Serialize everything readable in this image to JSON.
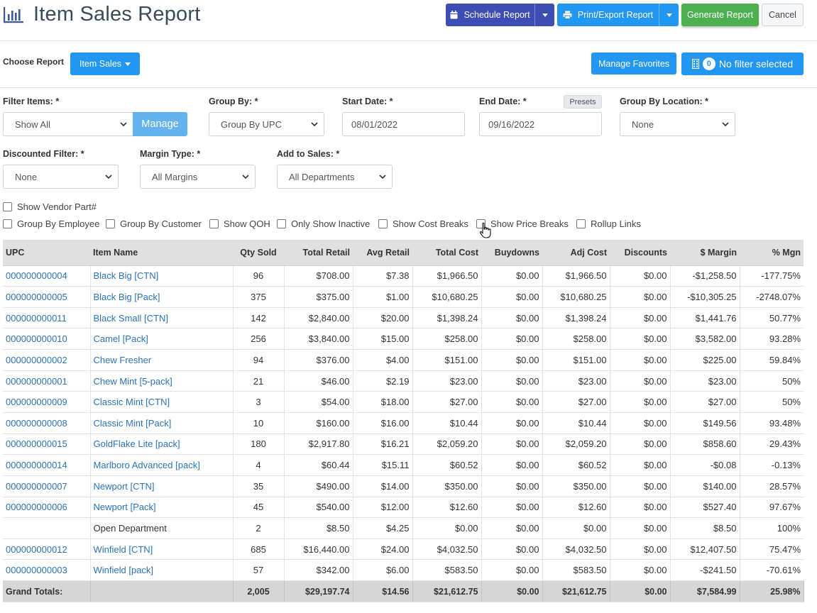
{
  "header": {
    "title": "Item Sales Report",
    "title_icon": "bar-chart-icon",
    "schedule_label": "Schedule Report",
    "print_label": "Print/Export Report",
    "generate_label": "Generate Report",
    "cancel_label": "Cancel"
  },
  "report": {
    "choose_label": "Choose Report",
    "selected": "Item Sales",
    "manage_favorites": "Manage Favorites",
    "filter_count": "0",
    "filter_text": "No filter selected"
  },
  "filters": {
    "filter_items": {
      "label": "Filter Items: *",
      "value": "Show All",
      "manage_label": "Manage"
    },
    "group_by": {
      "label": "Group By: *",
      "value": "Group By UPC"
    },
    "start_date": {
      "label": "Start Date: *",
      "value": "08/01/2022"
    },
    "end_date": {
      "label": "End Date: *",
      "value": "09/16/2022",
      "presets_label": "Presets"
    },
    "group_by_location": {
      "label": "Group By Location: *",
      "value": "None"
    },
    "discounted": {
      "label": "Discounted Filter: *",
      "value": "None"
    },
    "margin_type": {
      "label": "Margin Type: *",
      "value": "All Margins"
    },
    "add_to_sales": {
      "label": "Add to Sales: *",
      "value": "All Departments"
    }
  },
  "checkboxes": {
    "vendor_part": "Show Vendor Part#",
    "group_employee": "Group By Employee",
    "group_customer": "Group By Customer",
    "show_qoh": "Show QOH",
    "only_inactive": "Only Show Inactive",
    "cost_breaks": "Show Cost Breaks",
    "price_breaks": "Show Price Breaks",
    "rollup_links": "Rollup Links"
  },
  "table": {
    "columns": [
      "UPC",
      "Item Name",
      "Qty Sold",
      "Total Retail",
      "Avg Retail",
      "Total Cost",
      "Buydowns",
      "Adj Cost",
      "Discounts",
      "$ Margin",
      "% Mgn"
    ],
    "rows": [
      [
        "000000000004",
        "Black Big [CTN]",
        "96",
        "$708.00",
        "$7.38",
        "$1,966.50",
        "$0.00",
        "$1,966.50",
        "$0.00",
        "-$1,258.50",
        "-177.75%"
      ],
      [
        "000000000005",
        "Black Big [Pack]",
        "375",
        "$375.00",
        "$1.00",
        "$10,680.25",
        "$0.00",
        "$10,680.25",
        "$0.00",
        "-$10,305.25",
        "-2748.07%"
      ],
      [
        "000000000011",
        "Black Small [CTN]",
        "142",
        "$2,840.00",
        "$20.00",
        "$1,398.24",
        "$0.00",
        "$1,398.24",
        "$0.00",
        "$1,441.76",
        "50.77%"
      ],
      [
        "000000000010",
        "Camel [Pack]",
        "256",
        "$3,840.00",
        "$15.00",
        "$258.00",
        "$0.00",
        "$258.00",
        "$0.00",
        "$3,582.00",
        "93.28%"
      ],
      [
        "000000000002",
        "Chew Fresher",
        "94",
        "$376.00",
        "$4.00",
        "$151.00",
        "$0.00",
        "$151.00",
        "$0.00",
        "$225.00",
        "59.84%"
      ],
      [
        "000000000001",
        "Chew Mint [5-pack]",
        "21",
        "$46.00",
        "$2.19",
        "$23.00",
        "$0.00",
        "$23.00",
        "$0.00",
        "$23.00",
        "50%"
      ],
      [
        "000000000009",
        "Classic Mint [CTN]",
        "3",
        "$54.00",
        "$18.00",
        "$27.00",
        "$0.00",
        "$27.00",
        "$0.00",
        "$27.00",
        "50%"
      ],
      [
        "000000000008",
        "Classic Mint [Pack]",
        "10",
        "$160.00",
        "$16.00",
        "$10.44",
        "$0.00",
        "$10.44",
        "$0.00",
        "$149.56",
        "93.48%"
      ],
      [
        "000000000015",
        "GoldFlake Lite [pack]",
        "180",
        "$2,917.80",
        "$16.21",
        "$2,059.20",
        "$0.00",
        "$2,059.20",
        "$0.00",
        "$858.60",
        "29.43%"
      ],
      [
        "000000000014",
        "Marlboro Advanced [pack]",
        "4",
        "$60.44",
        "$15.11",
        "$60.52",
        "$0.00",
        "$60.52",
        "$0.00",
        "-$0.08",
        "-0.13%"
      ],
      [
        "000000000007",
        "Newport [CTN]",
        "35",
        "$490.00",
        "$14.00",
        "$350.00",
        "$0.00",
        "$350.00",
        "$0.00",
        "$140.00",
        "28.57%"
      ],
      [
        "000000000006",
        "Newport [Pack]",
        "45",
        "$540.00",
        "$12.00",
        "$12.60",
        "$0.00",
        "$12.60",
        "$0.00",
        "$527.40",
        "97.67%"
      ],
      [
        "",
        "Open Department",
        "2",
        "$8.50",
        "$4.25",
        "$0.00",
        "$0.00",
        "$0.00",
        "$0.00",
        "$8.50",
        "100%"
      ],
      [
        "000000000012",
        "Winfield [CTN]",
        "685",
        "$16,440.00",
        "$24.00",
        "$4,032.50",
        "$0.00",
        "$4,032.50",
        "$0.00",
        "$12,407.50",
        "75.47%"
      ],
      [
        "000000000003",
        "Winfield [pack]",
        "57",
        "$342.00",
        "$6.00",
        "$583.50",
        "$0.00",
        "$583.50",
        "$0.00",
        "-$241.50",
        "-70.61%"
      ]
    ],
    "totals": [
      "Grand Totals:",
      "",
      "2,005",
      "$29,197.74",
      "$14.56",
      "$21,612.75",
      "$0.00",
      "$21,612.75",
      "$0.00",
      "$7,584.99",
      "25.98%"
    ]
  }
}
